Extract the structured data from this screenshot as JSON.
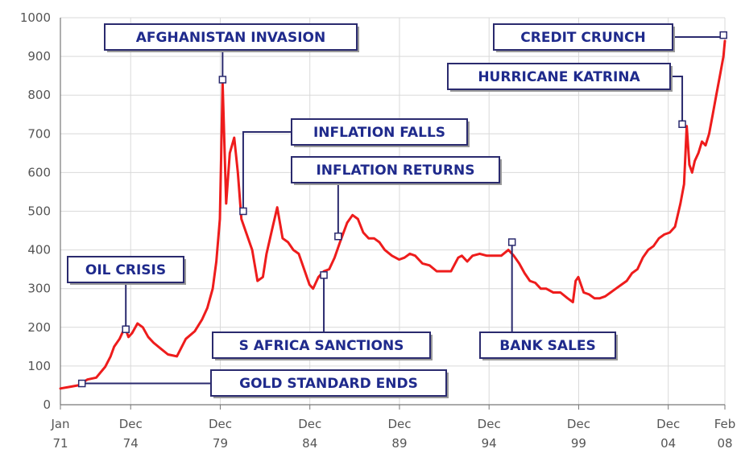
{
  "chart_data": {
    "type": "line",
    "title": "",
    "xlabel": "",
    "ylabel": "",
    "ylim": [
      0,
      1000
    ],
    "yticks": [
      0,
      100,
      200,
      300,
      400,
      500,
      600,
      700,
      800,
      900,
      1000
    ],
    "grid": true,
    "line_color": "#ee1c1c",
    "annotation_color": "#1f2a8c",
    "xticks": [
      {
        "line1": "Jan",
        "line2": "71",
        "t": 1971.0
      },
      {
        "line1": "Dec",
        "line2": "74",
        "t": 1974.92
      },
      {
        "line1": "Dec",
        "line2": "79",
        "t": 1979.92
      },
      {
        "line1": "Dec",
        "line2": "84",
        "t": 1984.92
      },
      {
        "line1": "Dec",
        "line2": "89",
        "t": 1989.92
      },
      {
        "line1": "Dec",
        "line2": "94",
        "t": 1994.92
      },
      {
        "line1": "Dec",
        "line2": "99",
        "t": 1999.92
      },
      {
        "line1": "Dec",
        "line2": "04",
        "t": 2004.92
      },
      {
        "line1": "Feb",
        "line2": "08",
        "t": 2008.08
      }
    ],
    "xlim": [
      1971.0,
      2008.08
    ],
    "series": [
      {
        "x": [
          1971.0,
          1971.5,
          1972.0,
          1972.5,
          1973.0,
          1973.5,
          1973.8,
          1974.0,
          1974.3,
          1974.6,
          1974.8,
          1975.0,
          1975.3,
          1975.6,
          1975.9,
          1976.2,
          1976.6,
          1977.0,
          1977.5,
          1978.0,
          1978.5,
          1978.9,
          1979.2,
          1979.5,
          1979.7,
          1979.9,
          1980.05,
          1980.25,
          1980.45,
          1980.7,
          1980.9,
          1981.1,
          1981.4,
          1981.7,
          1982.0,
          1982.3,
          1982.5,
          1982.8,
          1983.1,
          1983.4,
          1983.7,
          1984.0,
          1984.3,
          1984.6,
          1984.9,
          1985.1,
          1985.4,
          1985.7,
          1986.0,
          1986.3,
          1986.6,
          1987.0,
          1987.3,
          1987.6,
          1987.9,
          1988.2,
          1988.5,
          1988.8,
          1989.1,
          1989.5,
          1989.9,
          1990.2,
          1990.5,
          1990.8,
          1991.2,
          1991.6,
          1992.0,
          1992.4,
          1992.8,
          1993.2,
          1993.4,
          1993.7,
          1994.0,
          1994.4,
          1994.8,
          1995.2,
          1995.6,
          1996.0,
          1996.3,
          1996.6,
          1996.9,
          1997.2,
          1997.5,
          1997.8,
          1998.1,
          1998.5,
          1998.9,
          1999.3,
          1999.6,
          1999.75,
          1999.9,
          2000.2,
          2000.5,
          2000.8,
          2001.1,
          2001.4,
          2001.7,
          2002.0,
          2002.3,
          2002.6,
          2002.9,
          2003.2,
          2003.5,
          2003.8,
          2004.1,
          2004.4,
          2004.7,
          2005.0,
          2005.3,
          2005.6,
          2005.8,
          2005.95,
          2006.1,
          2006.25,
          2006.4,
          2006.6,
          2006.8,
          2007.0,
          2007.2,
          2007.4,
          2007.6,
          2007.8,
          2008.0,
          2008.08
        ],
        "values": [
          42,
          46,
          50,
          65,
          70,
          98,
          125,
          150,
          170,
          200,
          175,
          185,
          210,
          200,
          175,
          160,
          145,
          130,
          125,
          170,
          190,
          220,
          250,
          300,
          370,
          480,
          830,
          520,
          650,
          690,
          600,
          480,
          440,
          400,
          320,
          330,
          390,
          450,
          510,
          430,
          420,
          400,
          390,
          350,
          310,
          300,
          330,
          345,
          350,
          380,
          420,
          470,
          490,
          480,
          445,
          430,
          430,
          420,
          400,
          385,
          375,
          380,
          390,
          385,
          365,
          360,
          345,
          345,
          345,
          380,
          385,
          370,
          385,
          390,
          385,
          385,
          385,
          400,
          385,
          365,
          340,
          320,
          315,
          300,
          300,
          290,
          290,
          275,
          265,
          320,
          330,
          290,
          285,
          275,
          275,
          280,
          290,
          300,
          310,
          320,
          340,
          350,
          380,
          400,
          410,
          430,
          440,
          445,
          460,
          520,
          570,
          720,
          620,
          600,
          630,
          650,
          680,
          670,
          700,
          750,
          800,
          850,
          900,
          940
        ]
      }
    ],
    "annotations": [
      {
        "label": "AFGHANISTAN INVASION",
        "t": 1980.05,
        "v": 840
      },
      {
        "label": "INFLATION FALLS",
        "t": 1981.2,
        "v": 500
      },
      {
        "label": "INFLATION RETURNS",
        "t": 1986.5,
        "v": 435
      },
      {
        "label": "OIL CRISIS",
        "t": 1974.65,
        "v": 195
      },
      {
        "label": "S AFRICA SANCTIONS",
        "t": 1985.7,
        "v": 335
      },
      {
        "label": "GOLD STANDARD ENDS",
        "t": 1972.2,
        "v": 55
      },
      {
        "label": "BANK  SALES",
        "t": 1996.2,
        "v": 420
      },
      {
        "label": "CREDIT CRUNCH",
        "t": 2008.0,
        "v": 955
      },
      {
        "label": "HURRICANE KATRINA",
        "t": 2005.7,
        "v": 725
      }
    ]
  }
}
